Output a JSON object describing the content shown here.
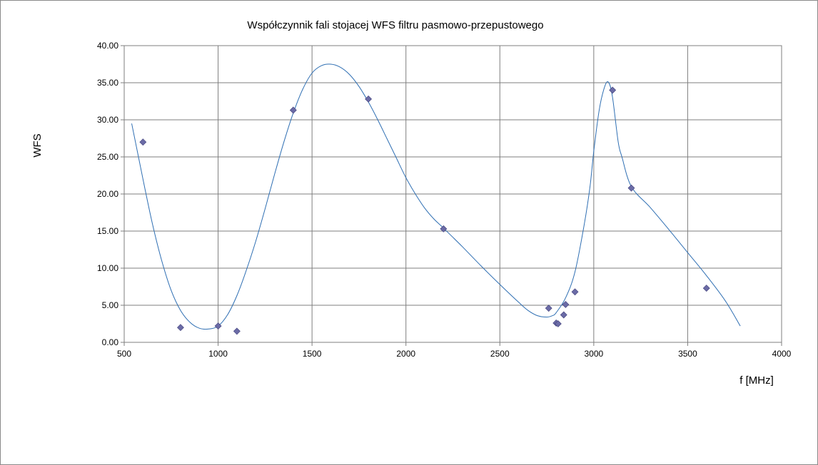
{
  "chart_data": {
    "type": "scatter",
    "title": "Współczynnik fali stojacej WFS filtru pasmowo-przepustowego",
    "xlabel": "f [MHz]",
    "ylabel": "WFS",
    "xlim": [
      500,
      4000
    ],
    "ylim": [
      0,
      40
    ],
    "x_ticks": [
      "500",
      "1000",
      "1500",
      "2000",
      "2500",
      "3000",
      "3500",
      "4000"
    ],
    "y_ticks": [
      "0.00",
      "5.00",
      "10.00",
      "15.00",
      "20.00",
      "25.00",
      "30.00",
      "35.00",
      "40.00"
    ],
    "grid": true,
    "legend": "none",
    "colors": {
      "marker": "#6b6ba6",
      "line": "#2f6fb3",
      "grid": "#7f7f7f"
    },
    "series": [
      {
        "marker": "diamond",
        "x": [
          600,
          800,
          1000,
          1100,
          1400,
          1800,
          2200,
          2760,
          2800,
          2810,
          2840,
          2850,
          2900,
          3100,
          3200,
          3600
        ],
        "y": [
          27.0,
          2.0,
          2.2,
          1.5,
          31.3,
          32.8,
          15.3,
          4.6,
          2.6,
          2.5,
          3.7,
          5.1,
          6.8,
          34.0,
          20.8,
          7.3
        ]
      }
    ],
    "trendline": {
      "x": [
        540,
        600,
        650,
        700,
        750,
        800,
        850,
        900,
        950,
        1000,
        1050,
        1100,
        1150,
        1200,
        1250,
        1300,
        1350,
        1400,
        1450,
        1500,
        1550,
        1600,
        1650,
        1700,
        1750,
        1800,
        1850,
        1900,
        1950,
        2000,
        2050,
        2100,
        2150,
        2200,
        2300,
        2400,
        2500,
        2600,
        2650,
        2700,
        2750,
        2780,
        2800,
        2850,
        2900,
        2950,
        2980,
        3000,
        3030,
        3060,
        3080,
        3100,
        3130,
        3150,
        3200,
        3300,
        3400,
        3500,
        3600,
        3700,
        3780
      ],
      "y": [
        29.5,
        22.0,
        16.0,
        11.0,
        7.0,
        4.3,
        2.7,
        1.9,
        1.8,
        2.2,
        3.7,
        6.3,
        9.7,
        13.6,
        18.0,
        22.6,
        27.0,
        30.9,
        34.1,
        36.3,
        37.3,
        37.5,
        37.1,
        36.1,
        34.5,
        32.4,
        30.0,
        27.4,
        24.8,
        22.2,
        20.0,
        18.1,
        16.6,
        15.4,
        12.9,
        10.3,
        7.8,
        5.4,
        4.3,
        3.6,
        3.4,
        3.6,
        4.0,
        6.0,
        9.5,
        16.0,
        21.0,
        25.8,
        31.5,
        34.6,
        35.0,
        33.0,
        27.0,
        25.0,
        21.0,
        18.2,
        15.2,
        12.1,
        9.0,
        5.6,
        2.2
      ]
    }
  }
}
